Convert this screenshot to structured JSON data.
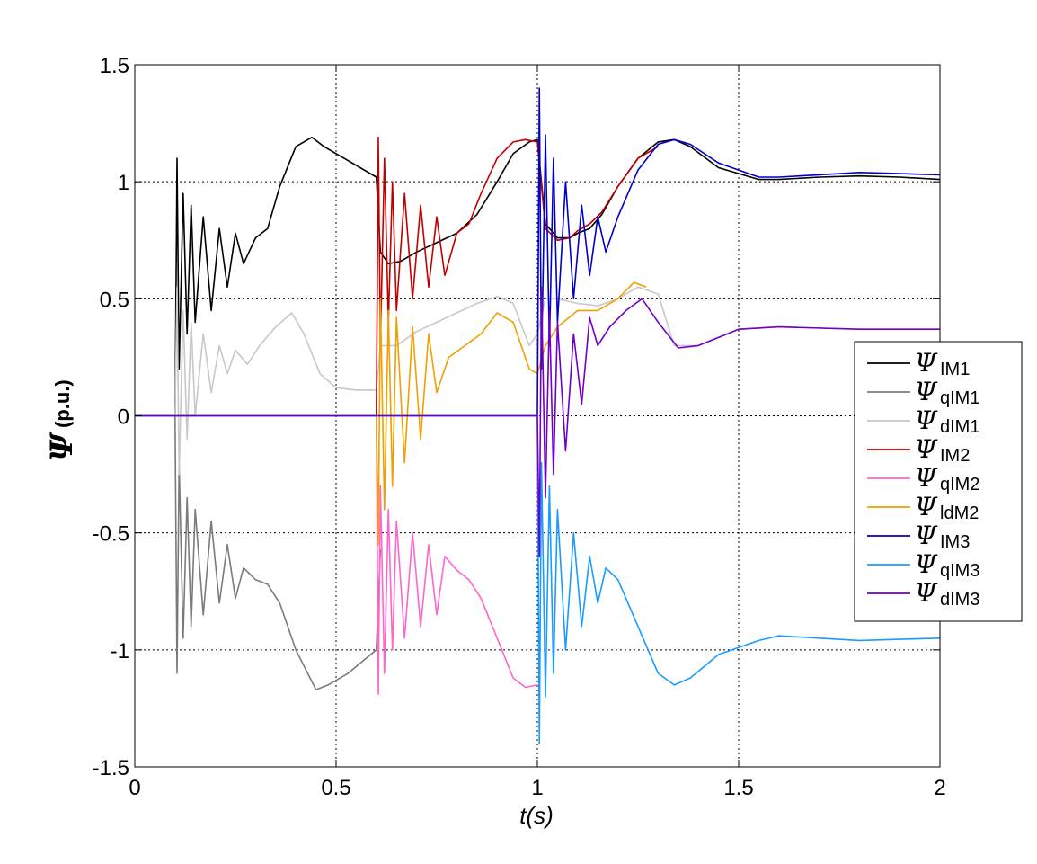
{
  "chart_data": {
    "type": "line",
    "xlabel": "t(s)",
    "ylabel_symbol": "Ψ",
    "ylabel_unit": "(p.u.)",
    "xlim": [
      0,
      2
    ],
    "ylim": [
      -1.5,
      1.5
    ],
    "xticks": [
      0,
      0.5,
      1,
      1.5,
      2
    ],
    "xtick_labels": [
      "0",
      "0.5",
      "1",
      "1.5",
      "2"
    ],
    "yticks": [
      -1.5,
      -1,
      -0.5,
      0,
      0.5,
      1,
      1.5
    ],
    "ytick_labels": [
      "-1.5",
      "-1",
      "-0.5",
      "0",
      "0.5",
      "1",
      "1.5"
    ],
    "grid": true,
    "legend_position": "right",
    "series": [
      {
        "name": "IM1",
        "color": "#000000",
        "x": [
          0,
          0.1,
          0.105,
          0.11,
          0.12,
          0.13,
          0.14,
          0.15,
          0.17,
          0.19,
          0.21,
          0.23,
          0.25,
          0.27,
          0.3,
          0.33,
          0.36,
          0.4,
          0.44,
          0.47,
          0.52,
          0.6,
          0.61,
          0.63,
          0.66,
          0.7,
          0.75,
          0.8,
          0.85,
          0.9,
          0.94,
          0.98,
          1.0,
          1.02,
          1.05,
          1.08,
          1.1,
          1.13,
          1.16,
          1.2,
          1.25,
          1.3,
          1.34,
          1.38,
          1.45,
          1.55,
          1.6,
          1.7,
          1.8,
          1.9,
          2.0
        ],
        "y": [
          0,
          0,
          1.1,
          0.2,
          0.95,
          0.35,
          0.9,
          0.4,
          0.85,
          0.45,
          0.8,
          0.55,
          0.78,
          0.65,
          0.76,
          0.8,
          0.98,
          1.15,
          1.19,
          1.15,
          1.1,
          1.02,
          0.7,
          0.65,
          0.66,
          0.7,
          0.74,
          0.78,
          0.86,
          1.0,
          1.12,
          1.17,
          1.18,
          0.82,
          0.76,
          0.76,
          0.78,
          0.8,
          0.86,
          0.98,
          1.1,
          1.17,
          1.18,
          1.15,
          1.06,
          1.01,
          1.01,
          1.02,
          1.025,
          1.02,
          1.01
        ]
      },
      {
        "name": "qIM1",
        "color": "#7a7a7a",
        "x": [
          0,
          0.1,
          0.105,
          0.11,
          0.12,
          0.13,
          0.14,
          0.15,
          0.17,
          0.19,
          0.21,
          0.23,
          0.25,
          0.27,
          0.3,
          0.33,
          0.36,
          0.4,
          0.45,
          0.48,
          0.53,
          0.6,
          0.61
        ],
        "y": [
          0,
          0,
          -1.1,
          -0.2,
          -0.95,
          -0.35,
          -0.9,
          -0.4,
          -0.85,
          -0.45,
          -0.8,
          -0.55,
          -0.78,
          -0.65,
          -0.7,
          -0.72,
          -0.8,
          -1.0,
          -1.17,
          -1.15,
          -1.1,
          -1.0,
          -0.57
        ]
      },
      {
        "name": "dIM1",
        "color": "#c8c8c8",
        "x": [
          0,
          0.1,
          0.105,
          0.11,
          0.12,
          0.13,
          0.14,
          0.15,
          0.17,
          0.19,
          0.21,
          0.23,
          0.25,
          0.28,
          0.31,
          0.35,
          0.39,
          0.42,
          0.46,
          0.5,
          0.55,
          0.6,
          0.61,
          0.65,
          0.7,
          0.75,
          0.8,
          0.85,
          0.9,
          0.94,
          0.98,
          1.0,
          1.02,
          1.05,
          1.1,
          1.15,
          1.2,
          1.25,
          1.3,
          1.34,
          1.4,
          1.5,
          1.6,
          1.8,
          2.0
        ],
        "y": [
          0,
          0,
          0.55,
          -0.25,
          0.45,
          -0.1,
          0.4,
          0.0,
          0.35,
          0.1,
          0.3,
          0.18,
          0.28,
          0.22,
          0.3,
          0.38,
          0.44,
          0.35,
          0.18,
          0.12,
          0.11,
          0.11,
          0.3,
          0.3,
          0.36,
          0.4,
          0.44,
          0.48,
          0.51,
          0.48,
          0.3,
          0.35,
          0.5,
          0.5,
          0.48,
          0.47,
          0.5,
          0.55,
          0.52,
          0.3,
          0.3,
          0.37,
          0.38,
          0.37,
          0.37
        ]
      },
      {
        "name": "IM2",
        "color": "#c00000",
        "x": [
          0,
          0.6,
          0.605,
          0.61,
          0.62,
          0.63,
          0.64,
          0.65,
          0.67,
          0.69,
          0.71,
          0.73,
          0.75,
          0.77,
          0.8,
          0.83,
          0.86,
          0.9,
          0.94,
          0.97,
          1.0,
          1.02,
          1.05,
          1.08,
          1.1,
          1.13,
          1.16,
          1.2,
          1.25,
          1.3
        ],
        "y": [
          0,
          0,
          1.19,
          0.3,
          1.1,
          0.4,
          1.0,
          0.45,
          0.95,
          0.5,
          0.9,
          0.55,
          0.85,
          0.6,
          0.78,
          0.82,
          0.95,
          1.1,
          1.17,
          1.18,
          1.17,
          0.8,
          0.75,
          0.76,
          0.79,
          0.82,
          0.87,
          0.98,
          1.1,
          1.15
        ]
      },
      {
        "name": "qIM2",
        "color": "#ff66cc",
        "x": [
          0,
          0.6,
          0.605,
          0.61,
          0.62,
          0.63,
          0.64,
          0.65,
          0.67,
          0.69,
          0.71,
          0.73,
          0.75,
          0.77,
          0.8,
          0.83,
          0.86,
          0.9,
          0.94,
          0.97,
          1.0
        ],
        "y": [
          0,
          0,
          -1.19,
          -0.3,
          -1.1,
          -0.4,
          -1.0,
          -0.45,
          -0.95,
          -0.5,
          -0.9,
          -0.55,
          -0.85,
          -0.6,
          -0.66,
          -0.7,
          -0.78,
          -0.95,
          -1.12,
          -1.16,
          -1.15
        ]
      },
      {
        "name": "ldM2",
        "color": "#f0a000",
        "x": [
          0,
          0.6,
          0.605,
          0.61,
          0.62,
          0.63,
          0.64,
          0.65,
          0.67,
          0.69,
          0.71,
          0.73,
          0.75,
          0.78,
          0.82,
          0.86,
          0.9,
          0.94,
          0.98,
          1.0,
          1.02,
          1.05,
          1.1,
          1.15,
          1.2,
          1.24,
          1.27
        ],
        "y": [
          0,
          0,
          -0.55,
          0.5,
          -0.4,
          0.45,
          -0.3,
          0.42,
          -0.2,
          0.38,
          -0.1,
          0.35,
          0.1,
          0.25,
          0.3,
          0.35,
          0.44,
          0.4,
          0.2,
          0.18,
          0.3,
          0.38,
          0.45,
          0.45,
          0.5,
          0.57,
          0.55
        ]
      },
      {
        "name": "IM3",
        "color": "#0000c8",
        "x": [
          0,
          1.0,
          1.005,
          1.01,
          1.02,
          1.03,
          1.04,
          1.05,
          1.07,
          1.09,
          1.11,
          1.13,
          1.15,
          1.17,
          1.2,
          1.25,
          1.3,
          1.34,
          1.38,
          1.45,
          1.55,
          1.6,
          1.7,
          1.8,
          1.9,
          2.0
        ],
        "y": [
          0,
          0,
          1.4,
          0.2,
          1.2,
          0.3,
          1.1,
          0.4,
          1.0,
          0.5,
          0.9,
          0.6,
          0.85,
          0.7,
          0.85,
          1.05,
          1.16,
          1.18,
          1.16,
          1.08,
          1.02,
          1.02,
          1.03,
          1.04,
          1.035,
          1.03
        ]
      },
      {
        "name": "qIM3",
        "color": "#1a9bff",
        "x": [
          0,
          1.0,
          1.005,
          1.01,
          1.02,
          1.03,
          1.04,
          1.05,
          1.07,
          1.09,
          1.11,
          1.13,
          1.15,
          1.17,
          1.2,
          1.25,
          1.3,
          1.34,
          1.38,
          1.45,
          1.55,
          1.6,
          1.7,
          1.8,
          1.9,
          2.0
        ],
        "y": [
          0,
          0,
          -1.4,
          -0.2,
          -1.2,
          -0.3,
          -1.1,
          -0.4,
          -1.0,
          -0.5,
          -0.9,
          -0.6,
          -0.8,
          -0.65,
          -0.7,
          -0.9,
          -1.1,
          -1.15,
          -1.12,
          -1.02,
          -0.96,
          -0.94,
          -0.95,
          -0.96,
          -0.955,
          -0.95
        ]
      },
      {
        "name": "dIM3",
        "color": "#7000c8",
        "x": [
          0,
          1.0,
          1.005,
          1.01,
          1.02,
          1.03,
          1.04,
          1.05,
          1.07,
          1.09,
          1.11,
          1.13,
          1.15,
          1.18,
          1.22,
          1.26,
          1.3,
          1.35,
          1.4,
          1.5,
          1.6,
          1.8,
          2.0
        ],
        "y": [
          0,
          0,
          -0.6,
          0.55,
          -0.35,
          0.45,
          -0.25,
          0.4,
          -0.15,
          0.35,
          0.05,
          0.42,
          0.3,
          0.38,
          0.45,
          0.5,
          0.4,
          0.29,
          0.3,
          0.37,
          0.38,
          0.37,
          0.37
        ]
      }
    ]
  }
}
